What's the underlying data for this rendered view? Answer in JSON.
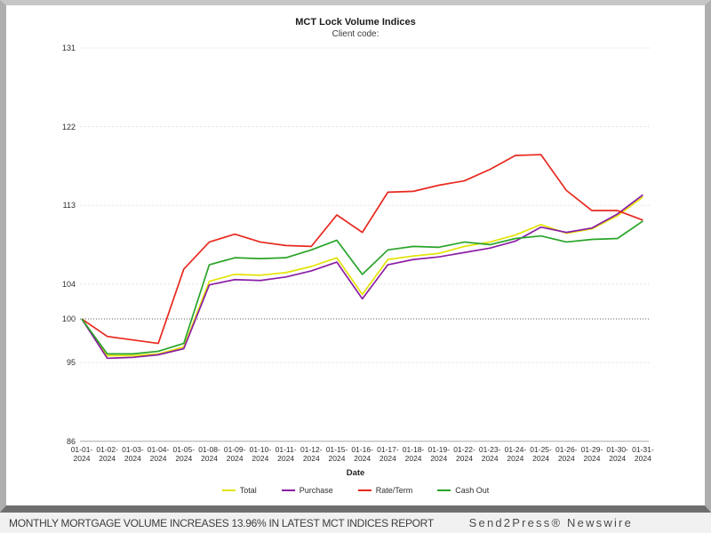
{
  "chart_data": {
    "type": "line",
    "title": "MCT Lock Volume Indices",
    "subtitle": "Client code:",
    "xlabel": "Date",
    "ylabel": "",
    "ylim": [
      86,
      131
    ],
    "y_ticks": [
      131,
      122,
      113,
      104,
      100,
      95,
      86
    ],
    "baseline": 100,
    "grid": "horizontal-dotted",
    "legend_position": "bottom",
    "categories": [
      "01-01-2024",
      "01-02-2024",
      "01-03-2024",
      "01-04-2024",
      "01-05-2024",
      "01-08-2024",
      "01-09-2024",
      "01-10-2024",
      "01-11-2024",
      "01-12-2024",
      "01-15-2024",
      "01-16-2024",
      "01-17-2024",
      "01-18-2024",
      "01-19-2024",
      "01-22-2024",
      "01-23-2024",
      "01-24-2024",
      "01-25-2024",
      "01-26-2024",
      "01-29-2024",
      "01-30-2024",
      "01-31-2024"
    ],
    "series": [
      {
        "name": "Total",
        "color": "#e3e306",
        "values": [
          100,
          95.8,
          95.8,
          96.0,
          96.8,
          104.3,
          105.1,
          105.0,
          105.3,
          106.0,
          107.0,
          102.8,
          106.8,
          107.2,
          107.5,
          108.3,
          108.8,
          109.6,
          110.8,
          109.8,
          110.3,
          111.8,
          113.96
        ]
      },
      {
        "name": "Purchase",
        "color": "#8b1da4",
        "values": [
          100,
          95.5,
          95.6,
          95.9,
          96.6,
          103.9,
          104.5,
          104.4,
          104.8,
          105.5,
          106.5,
          102.3,
          106.2,
          106.8,
          107.1,
          107.6,
          108.1,
          108.9,
          110.5,
          109.9,
          110.4,
          112.0,
          114.2
        ]
      },
      {
        "name": "Rate/Term",
        "color": "#e8291e",
        "values": [
          100,
          98.0,
          97.6,
          97.2,
          105.7,
          108.8,
          109.7,
          108.8,
          108.4,
          108.3,
          111.9,
          109.9,
          114.5,
          114.6,
          115.3,
          115.8,
          117.1,
          118.7,
          118.8,
          114.7,
          112.4,
          112.4,
          111.3
        ]
      },
      {
        "name": "Cash Out",
        "color": "#28a428",
        "values": [
          100,
          96.0,
          96.0,
          96.3,
          97.2,
          106.2,
          107.0,
          106.9,
          107.0,
          107.9,
          109.0,
          105.1,
          107.9,
          108.3,
          108.2,
          108.8,
          108.5,
          109.2,
          109.5,
          108.8,
          109.1,
          109.2,
          111.2
        ]
      }
    ],
    "colors": {
      "gridline": "#d6d6d6",
      "baseline": "#5a5a5a",
      "axis": "#a8a8a8"
    }
  },
  "footer": {
    "headline": "MONTHLY MORTGAGE VOLUME INCREASES 13.96% IN LATEST MCT INDICES REPORT",
    "brand": "Send2Press® Newswire"
  }
}
